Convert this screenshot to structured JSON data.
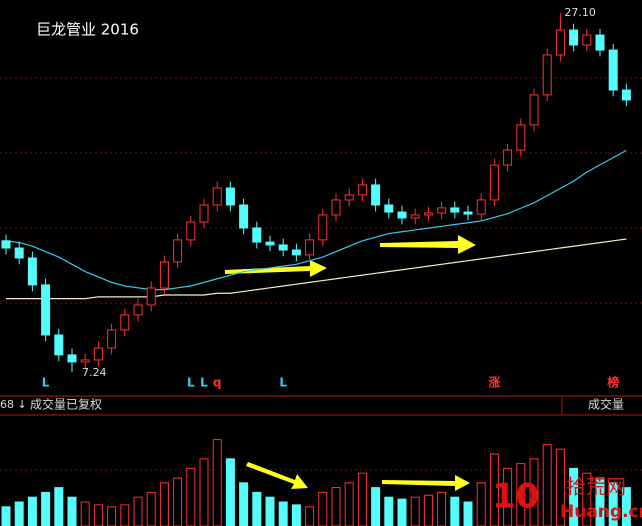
{
  "chart_data": [
    {
      "type": "candlestick",
      "title": "巨龙管业 2016",
      "open": [
        14.5,
        14.1,
        13.55,
        12.06,
        9.29,
        8.19,
        7.8,
        7.91,
        8.57,
        9.57,
        10.4,
        10.95,
        11.89,
        13.33,
        14.55,
        15.54,
        16.48,
        17.42,
        16.48,
        15.21,
        14.43,
        14.27,
        13.99,
        13.72,
        14.55,
        15.93,
        16.76,
        17.04,
        17.59,
        16.48,
        16.09,
        15.76,
        15.93,
        16.04,
        16.32,
        16.09,
        15.98,
        16.76,
        18.69,
        19.52,
        20.91,
        22.57,
        24.78,
        26.16,
        25.33,
        25.88,
        25.05,
        22.84
      ],
      "high": [
        14.85,
        14.45,
        13.9,
        12.41,
        9.64,
        8.54,
        8.26,
        8.92,
        9.92,
        10.75,
        11.3,
        12.24,
        13.68,
        14.9,
        15.89,
        16.83,
        17.77,
        17.77,
        16.83,
        15.56,
        14.78,
        14.62,
        14.34,
        14.9,
        16.28,
        17.11,
        17.39,
        17.94,
        17.94,
        16.83,
        16.44,
        16.28,
        16.39,
        16.67,
        16.67,
        16.44,
        17.11,
        19.04,
        19.87,
        21.26,
        22.92,
        25.13,
        27.1,
        26.51,
        26.23,
        26.23,
        25.4,
        23.19
      ],
      "low": [
        13.75,
        13.2,
        11.71,
        8.94,
        7.84,
        7.24,
        7.45,
        7.56,
        8.22,
        9.22,
        10.05,
        10.6,
        11.54,
        12.98,
        14.2,
        15.19,
        16.13,
        16.13,
        14.86,
        14.08,
        13.92,
        13.64,
        13.37,
        13.37,
        14.2,
        15.58,
        16.41,
        16.69,
        16.13,
        15.74,
        15.41,
        15.41,
        15.58,
        15.69,
        15.74,
        15.63,
        15.63,
        16.41,
        18.34,
        19.17,
        20.56,
        22.22,
        24.43,
        24.98,
        24.98,
        24.7,
        22.49,
        21.94
      ],
      "close": [
        14.1,
        13.55,
        12.06,
        9.29,
        8.19,
        7.8,
        7.91,
        8.57,
        9.57,
        10.4,
        10.95,
        11.89,
        13.33,
        14.55,
        15.54,
        16.48,
        17.42,
        16.48,
        15.21,
        14.43,
        14.27,
        13.99,
        13.72,
        14.55,
        15.93,
        16.76,
        17.04,
        17.59,
        16.48,
        16.09,
        15.76,
        15.93,
        16.04,
        16.32,
        16.09,
        15.98,
        16.76,
        18.69,
        19.52,
        20.91,
        22.57,
        24.78,
        26.16,
        25.33,
        25.88,
        25.05,
        22.84,
        22.29
      ],
      "high_label": "27.10",
      "low_label": "7.24",
      "signals": [
        null,
        null,
        null,
        "L",
        null,
        null,
        null,
        null,
        null,
        null,
        null,
        null,
        null,
        null,
        "L",
        "L",
        "q",
        null,
        null,
        null,
        null,
        "L",
        null,
        null,
        null,
        null,
        null,
        null,
        null,
        null,
        null,
        null,
        null,
        null,
        null,
        null,
        null,
        "涨",
        null,
        null,
        null,
        null,
        null,
        null,
        null,
        null,
        "榜",
        null
      ],
      "series": [
        {
          "color": "#33ccee",
          "values": [
            14.5,
            14.4,
            14.2,
            13.9,
            13.6,
            13.2,
            12.8,
            12.5,
            12.2,
            12.0,
            11.9,
            11.8,
            11.8,
            11.9,
            12.0,
            12.2,
            12.4,
            12.6,
            12.8,
            12.9,
            13.0,
            13.1,
            13.2,
            13.4,
            13.6,
            13.9,
            14.2,
            14.5,
            14.7,
            14.9,
            15.0,
            15.1,
            15.2,
            15.3,
            15.4,
            15.5,
            15.6,
            15.8,
            16.0,
            16.3,
            16.6,
            17.0,
            17.4,
            17.8,
            18.3,
            18.7,
            19.1,
            19.5
          ]
        },
        {
          "color": "#f0f0c8",
          "values": [
            11.3,
            11.3,
            11.3,
            11.3,
            11.3,
            11.3,
            11.3,
            11.4,
            11.4,
            11.4,
            11.4,
            11.4,
            11.5,
            11.5,
            11.5,
            11.5,
            11.6,
            11.6,
            11.7,
            11.8,
            11.9,
            12.0,
            12.1,
            12.2,
            12.3,
            12.4,
            12.5,
            12.6,
            12.7,
            12.8,
            12.9,
            13.0,
            13.1,
            13.2,
            13.3,
            13.4,
            13.5,
            13.6,
            13.7,
            13.8,
            13.9,
            14.0,
            14.1,
            14.2,
            14.3,
            14.4,
            14.5,
            14.6
          ]
        }
      ],
      "up_color": "#ff3030",
      "down_color": "#54fcfc",
      "ylim": [
        5.97,
        27.82
      ]
    },
    {
      "type": "bar",
      "title": "成交量已复权",
      "corner_label": "成交量",
      "index_label": "68 ↓",
      "values": [
        20,
        25,
        30,
        35,
        40,
        30,
        25,
        22,
        20,
        22,
        30,
        35,
        45,
        50,
        60,
        70,
        90,
        70,
        45,
        35,
        30,
        25,
        22,
        20,
        35,
        40,
        45,
        55,
        40,
        30,
        28,
        30,
        32,
        35,
        30,
        25,
        45,
        75,
        60,
        65,
        70,
        85,
        80,
        60,
        55,
        50,
        45,
        40
      ],
      "ylim": [
        0,
        100
      ]
    }
  ],
  "watermark": {
    "number": "10",
    "name": "拾荒网",
    "site": "Huang.cn"
  }
}
